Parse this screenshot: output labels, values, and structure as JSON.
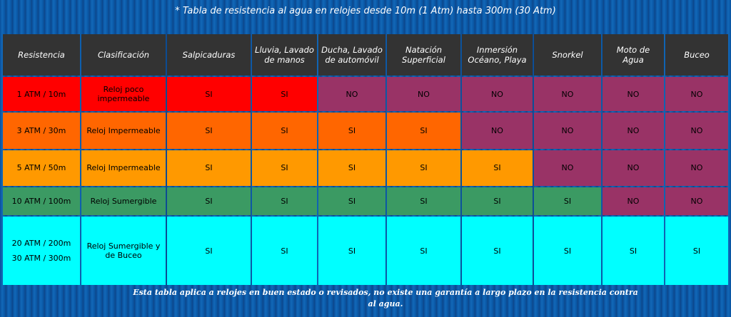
{
  "title": "* Tabla de resistencia al agua en relojes desde 10m (1 Atm) hasta 300m (30 Atm)",
  "table": {
    "header": [
      "Resistencia",
      "Clasificación",
      "Salpicaduras",
      "Lluvia, Lavado de manos",
      "Ducha, Lavado de automóvil",
      "Natación Superficial",
      "Inmersión Océano, Playa",
      "Snorkel",
      "Moto de Agua",
      "Buceo"
    ],
    "rows": [
      {
        "color": "#ff0000",
        "cells": [
          [
            "1 ATM / 10m"
          ],
          "Reloj poco impermeable",
          "SI",
          "SI",
          "NO",
          "NO",
          "NO",
          "NO",
          "NO",
          "NO"
        ]
      },
      {
        "color": "#ff6600",
        "cells": [
          [
            "3 ATM / 30m"
          ],
          "Reloj Impermeable",
          "SI",
          "SI",
          "SI",
          "SI",
          "NO",
          "NO",
          "NO",
          "NO"
        ]
      },
      {
        "color": "#ff9900",
        "cells": [
          [
            "5 ATM / 50m"
          ],
          "Reloj Impermeable",
          "SI",
          "SI",
          "SI",
          "SI",
          "SI",
          "NO",
          "NO",
          "NO"
        ]
      },
      {
        "color": "#3b9a63",
        "cells": [
          [
            "10 ATM / 100m"
          ],
          "Reloj Sumergible",
          "SI",
          "SI",
          "SI",
          "SI",
          "SI",
          "SI",
          "NO",
          "NO"
        ]
      },
      {
        "color": "#00ffff",
        "cells": [
          [
            "20 ATM / 200m",
            "30 ATM / 300m"
          ],
          "Reloj Sumergible y de Buceo",
          "SI",
          "SI",
          "SI",
          "SI",
          "SI",
          "SI",
          "SI",
          "SI"
        ]
      }
    ],
    "no_color": "#993366"
  },
  "footer": "Esta tabla aplica a relojes en buen estado o revisados, no existe una garantía a largo plazo en la resistencia contra al agua."
}
